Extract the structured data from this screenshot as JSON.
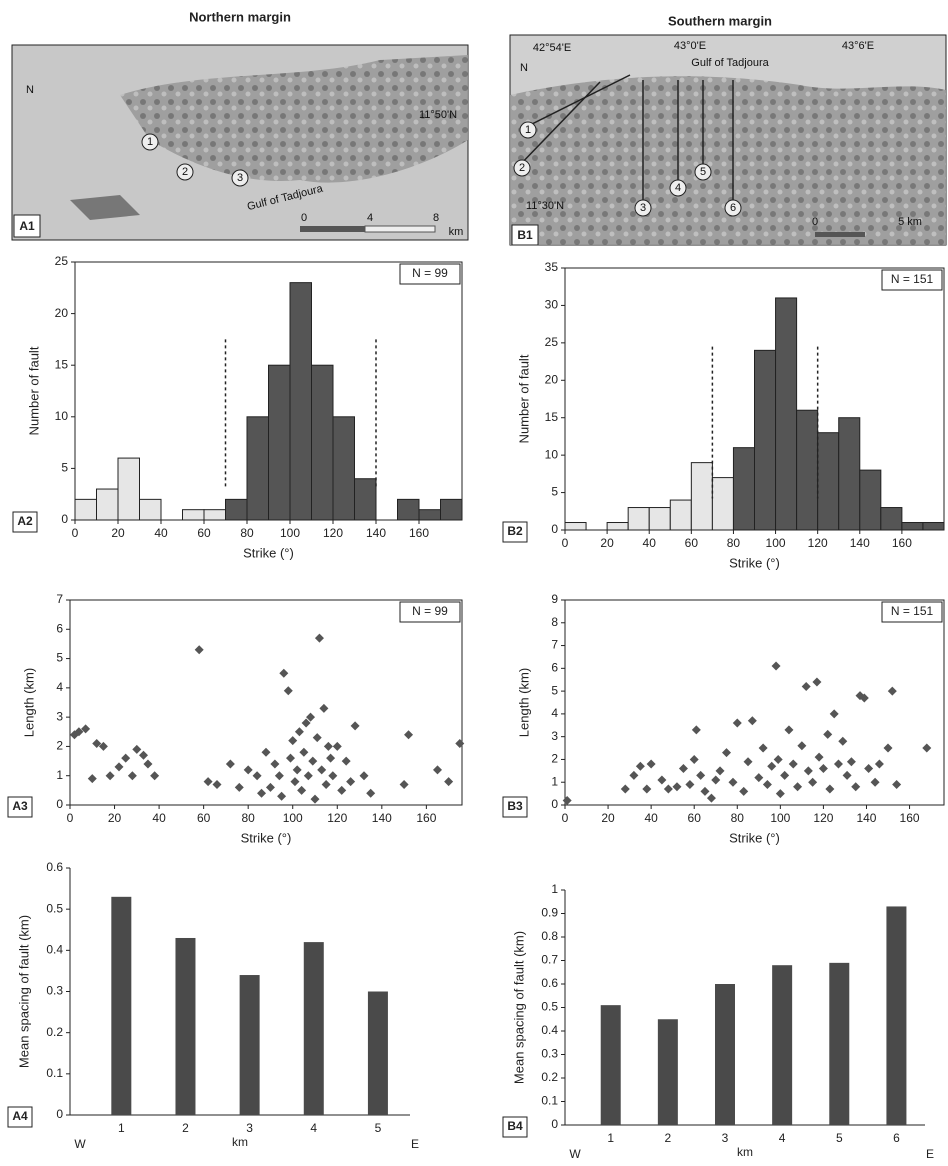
{
  "columns": [
    "Northern margin",
    "Southern margin"
  ],
  "maps": [
    {
      "panel_label": "A1",
      "labels": [
        "11°50'N",
        "Gulf of Tadjoura",
        "0",
        "4",
        "8",
        "km",
        "1",
        "2",
        "3",
        "N"
      ]
    },
    {
      "panel_label": "B1",
      "labels": [
        "42°54'E",
        "43°0'E",
        "43°6'E",
        "Gulf of Tadjoura",
        "11°30'N",
        "1",
        "2",
        "3",
        "4",
        "5",
        "6",
        "0",
        "5 km",
        "N"
      ]
    }
  ],
  "chart_data": [
    {
      "type": "histogram",
      "panel_label": "A2",
      "annotation": "N = 99",
      "x_label": "Strike (°)",
      "y_label": "Number of fault",
      "bins": [
        0,
        10,
        20,
        30,
        40,
        50,
        60,
        70,
        80,
        90,
        100,
        110,
        120,
        130,
        140,
        150,
        160,
        170,
        180
      ],
      "values": [
        2,
        3,
        6,
        2,
        0,
        1,
        1,
        2,
        10,
        15,
        23,
        15,
        10,
        4,
        0,
        2,
        1,
        2
      ],
      "colors": [
        "#e6e6e6",
        "#e6e6e6",
        "#e6e6e6",
        "#e6e6e6",
        "#e6e6e6",
        "#e6e6e6",
        "#e6e6e6",
        "#555",
        "#555",
        "#555",
        "#555",
        "#555",
        "#555",
        "#555",
        "#555",
        "#555",
        "#555",
        "#555"
      ],
      "dashed_lines": [
        70,
        140
      ],
      "xlim": [
        0,
        180
      ],
      "ylim": [
        0,
        25
      ],
      "xticks": [
        0,
        20,
        40,
        60,
        80,
        100,
        120,
        140,
        160
      ],
      "yticks": [
        0,
        5,
        10,
        15,
        20,
        25
      ]
    },
    {
      "type": "histogram",
      "panel_label": "B2",
      "annotation": "N = 151",
      "x_label": "Strike (°)",
      "y_label": "Number of fault",
      "bins": [
        0,
        10,
        20,
        30,
        40,
        50,
        60,
        70,
        80,
        90,
        100,
        110,
        120,
        130,
        140,
        150,
        160,
        170,
        180
      ],
      "values": [
        1,
        0,
        1,
        3,
        3,
        4,
        9,
        7,
        11,
        24,
        31,
        16,
        13,
        15,
        8,
        3,
        1,
        1
      ],
      "colors": [
        "#e6e6e6",
        "#e6e6e6",
        "#e6e6e6",
        "#e6e6e6",
        "#e6e6e6",
        "#e6e6e6",
        "#e6e6e6",
        "#e6e6e6",
        "#555",
        "#555",
        "#555",
        "#555",
        "#555",
        "#555",
        "#555",
        "#555",
        "#555",
        "#555"
      ],
      "dashed_lines": [
        70,
        120
      ],
      "xlim": [
        0,
        180
      ],
      "ylim": [
        0,
        35
      ],
      "xticks": [
        0,
        20,
        40,
        60,
        80,
        100,
        120,
        140,
        160
      ],
      "yticks": [
        0,
        5,
        10,
        15,
        20,
        25,
        30,
        35
      ]
    },
    {
      "type": "scatter",
      "panel_label": "A3",
      "annotation": "N = 99",
      "x_label": "Strike (°)",
      "y_label": "Length (km)",
      "color": "#555",
      "x": [
        2,
        4,
        7,
        10,
        12,
        15,
        18,
        22,
        25,
        28,
        30,
        33,
        35,
        38,
        58,
        62,
        66,
        72,
        76,
        80,
        84,
        86,
        88,
        90,
        92,
        94,
        95,
        96,
        98,
        99,
        100,
        101,
        102,
        103,
        104,
        105,
        106,
        107,
        108,
        109,
        110,
        111,
        112,
        113,
        114,
        115,
        116,
        117,
        118,
        120,
        122,
        124,
        126,
        128,
        132,
        135,
        150,
        152,
        165,
        170,
        175
      ],
      "values": [
        2.4,
        2.5,
        2.6,
        0.9,
        2.1,
        2.0,
        1.0,
        1.3,
        1.6,
        1.0,
        1.9,
        1.7,
        1.4,
        1.0,
        5.3,
        0.8,
        0.7,
        1.4,
        0.6,
        1.2,
        1.0,
        0.4,
        1.8,
        0.6,
        1.4,
        1.0,
        0.3,
        4.5,
        3.9,
        1.6,
        2.2,
        0.8,
        1.2,
        2.5,
        0.5,
        1.8,
        2.8,
        1.0,
        3.0,
        1.5,
        0.2,
        2.3,
        5.7,
        1.2,
        3.3,
        0.7,
        2.0,
        1.6,
        1.0,
        2.0,
        0.5,
        1.5,
        0.8,
        2.7,
        1.0,
        0.4,
        0.7,
        2.4,
        1.2,
        0.8,
        2.1
      ],
      "xlim": [
        0,
        176
      ],
      "ylim": [
        0,
        7
      ],
      "xticks": [
        0,
        20,
        40,
        60,
        80,
        100,
        120,
        140,
        160
      ],
      "yticks": [
        0,
        1,
        2,
        3,
        4,
        5,
        6,
        7
      ]
    },
    {
      "type": "scatter",
      "panel_label": "B3",
      "annotation": "N = 151",
      "x_label": "Strike (°)",
      "y_label": "Length (km)",
      "color": "#555",
      "x": [
        1,
        28,
        32,
        35,
        38,
        40,
        45,
        48,
        52,
        55,
        58,
        60,
        61,
        63,
        65,
        68,
        70,
        72,
        75,
        78,
        80,
        83,
        85,
        87,
        90,
        92,
        94,
        96,
        98,
        99,
        100,
        102,
        104,
        106,
        108,
        110,
        112,
        113,
        115,
        117,
        118,
        120,
        122,
        123,
        125,
        127,
        129,
        131,
        133,
        135,
        137,
        139,
        141,
        144,
        146,
        150,
        152,
        154,
        168
      ],
      "values": [
        0.2,
        0.7,
        1.3,
        1.7,
        0.7,
        1.8,
        1.1,
        0.7,
        0.8,
        1.6,
        0.9,
        2.0,
        3.3,
        1.3,
        0.6,
        0.3,
        1.1,
        1.5,
        2.3,
        1.0,
        3.6,
        0.6,
        1.9,
        3.7,
        1.2,
        2.5,
        0.9,
        1.7,
        6.1,
        2.0,
        0.5,
        1.3,
        3.3,
        1.8,
        0.8,
        2.6,
        5.2,
        1.5,
        1.0,
        5.4,
        2.1,
        1.6,
        3.1,
        0.7,
        4.0,
        1.8,
        2.8,
        1.3,
        1.9,
        0.8,
        4.8,
        4.7,
        1.6,
        1.0,
        1.8,
        2.5,
        5.0,
        0.9,
        2.5
      ],
      "xlim": [
        0,
        176
      ],
      "ylim": [
        0,
        9
      ],
      "xticks": [
        0,
        20,
        40,
        60,
        80,
        100,
        120,
        140,
        160
      ],
      "yticks": [
        0,
        1,
        2,
        3,
        4,
        5,
        6,
        7,
        8,
        9
      ]
    },
    {
      "type": "bar",
      "panel_label": "A4",
      "x_label": "km",
      "y_label": "Mean spacing of fault (km)",
      "color": "#4a4a4a",
      "end_labels": [
        "W",
        "E"
      ],
      "categories": [
        "1",
        "2",
        "3",
        "4",
        "5"
      ],
      "values": [
        0.53,
        0.43,
        0.34,
        0.42,
        0.3
      ],
      "ylim": [
        0,
        0.6
      ],
      "yticks": [
        0,
        0.1,
        0.2,
        0.3,
        0.4,
        0.5,
        0.6
      ]
    },
    {
      "type": "bar",
      "panel_label": "B4",
      "x_label": "km",
      "y_label": "Mean spacing of fault (km)",
      "color": "#4a4a4a",
      "end_labels": [
        "W",
        "E"
      ],
      "categories": [
        "1",
        "2",
        "3",
        "4",
        "5",
        "6"
      ],
      "values": [
        0.51,
        0.45,
        0.6,
        0.68,
        0.69,
        0.93
      ],
      "ylim": [
        0,
        1
      ],
      "yticks": [
        0,
        0.1,
        0.2,
        0.3,
        0.4,
        0.5,
        0.6,
        0.7,
        0.8,
        0.9,
        1
      ]
    }
  ]
}
